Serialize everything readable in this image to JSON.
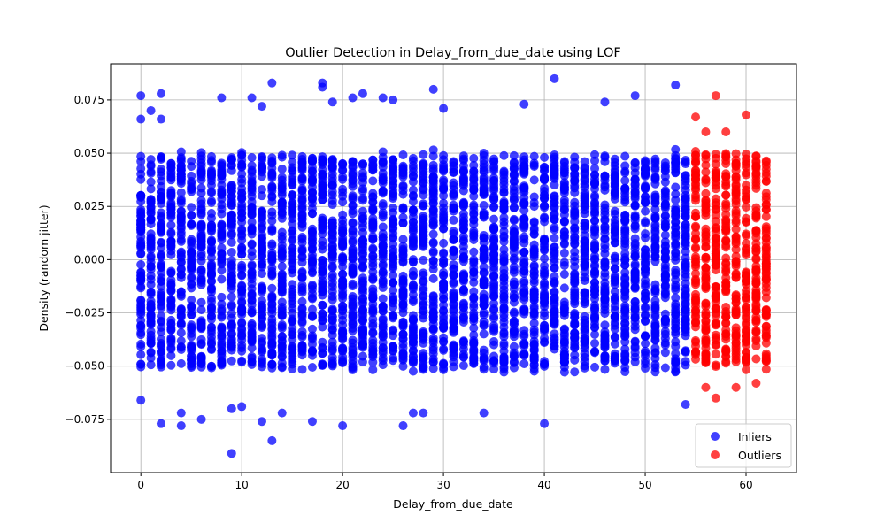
{
  "chart_data": {
    "type": "scatter",
    "title": "Outlier Detection in Delay_from_due_date using LOF",
    "xlabel": "Delay_from_due_date",
    "ylabel": "Density (random jitter)",
    "xlim": [
      -3,
      65
    ],
    "ylim": [
      -0.1,
      0.092
    ],
    "x_ticks": [
      0,
      10,
      20,
      30,
      40,
      50,
      60
    ],
    "x_tick_labels": [
      "0",
      "10",
      "20",
      "30",
      "40",
      "50",
      "60"
    ],
    "y_ticks": [
      -0.075,
      -0.05,
      -0.025,
      0.0,
      0.025,
      0.05,
      0.075
    ],
    "y_tick_labels": [
      "−0.075",
      "−0.050",
      "−0.025",
      "0.000",
      "0.025",
      "0.050",
      "0.075"
    ],
    "grid": true,
    "legend_position": "lower-right",
    "series": [
      {
        "name": "Inliers",
        "color": "#0000ff",
        "x_range": [
          0,
          54
        ],
        "typical_y_range": [
          -0.052,
          0.05
        ],
        "notable_points": [
          {
            "x": 0,
            "y": 0.077
          },
          {
            "x": 0,
            "y": 0.066
          },
          {
            "x": 0,
            "y": -0.066
          },
          {
            "x": 1,
            "y": 0.07
          },
          {
            "x": 2,
            "y": 0.078
          },
          {
            "x": 2,
            "y": 0.066
          },
          {
            "x": 2,
            "y": -0.077
          },
          {
            "x": 4,
            "y": -0.078
          },
          {
            "x": 4,
            "y": -0.072
          },
          {
            "x": 6,
            "y": -0.075
          },
          {
            "x": 8,
            "y": 0.076
          },
          {
            "x": 9,
            "y": -0.091
          },
          {
            "x": 9,
            "y": -0.07
          },
          {
            "x": 10,
            "y": -0.069
          },
          {
            "x": 11,
            "y": 0.076
          },
          {
            "x": 12,
            "y": 0.072
          },
          {
            "x": 12,
            "y": -0.076
          },
          {
            "x": 13,
            "y": 0.083
          },
          {
            "x": 13,
            "y": -0.085
          },
          {
            "x": 14,
            "y": -0.072
          },
          {
            "x": 17,
            "y": -0.076
          },
          {
            "x": 18,
            "y": 0.083
          },
          {
            "x": 18,
            "y": 0.081
          },
          {
            "x": 19,
            "y": 0.074
          },
          {
            "x": 20,
            "y": -0.078
          },
          {
            "x": 21,
            "y": 0.076
          },
          {
            "x": 22,
            "y": 0.078
          },
          {
            "x": 24,
            "y": 0.076
          },
          {
            "x": 25,
            "y": 0.075
          },
          {
            "x": 26,
            "y": -0.078
          },
          {
            "x": 27,
            "y": -0.072
          },
          {
            "x": 28,
            "y": -0.072
          },
          {
            "x": 29,
            "y": 0.08
          },
          {
            "x": 30,
            "y": 0.071
          },
          {
            "x": 34,
            "y": -0.072
          },
          {
            "x": 38,
            "y": 0.073
          },
          {
            "x": 40,
            "y": -0.077
          },
          {
            "x": 41,
            "y": 0.085
          },
          {
            "x": 46,
            "y": 0.074
          },
          {
            "x": 49,
            "y": 0.077
          },
          {
            "x": 53,
            "y": 0.082
          },
          {
            "x": 54,
            "y": -0.068
          }
        ]
      },
      {
        "name": "Outliers",
        "color": "#ff0000",
        "x_range": [
          55,
          62
        ],
        "typical_y_range": [
          -0.05,
          0.05
        ],
        "notable_points": [
          {
            "x": 55,
            "y": 0.067
          },
          {
            "x": 56,
            "y": 0.06
          },
          {
            "x": 57,
            "y": 0.077
          },
          {
            "x": 58,
            "y": 0.06
          },
          {
            "x": 60,
            "y": 0.068
          },
          {
            "x": 57,
            "y": -0.065
          },
          {
            "x": 59,
            "y": -0.06
          },
          {
            "x": 56,
            "y": -0.06
          },
          {
            "x": 61,
            "y": -0.058
          }
        ]
      }
    ]
  }
}
